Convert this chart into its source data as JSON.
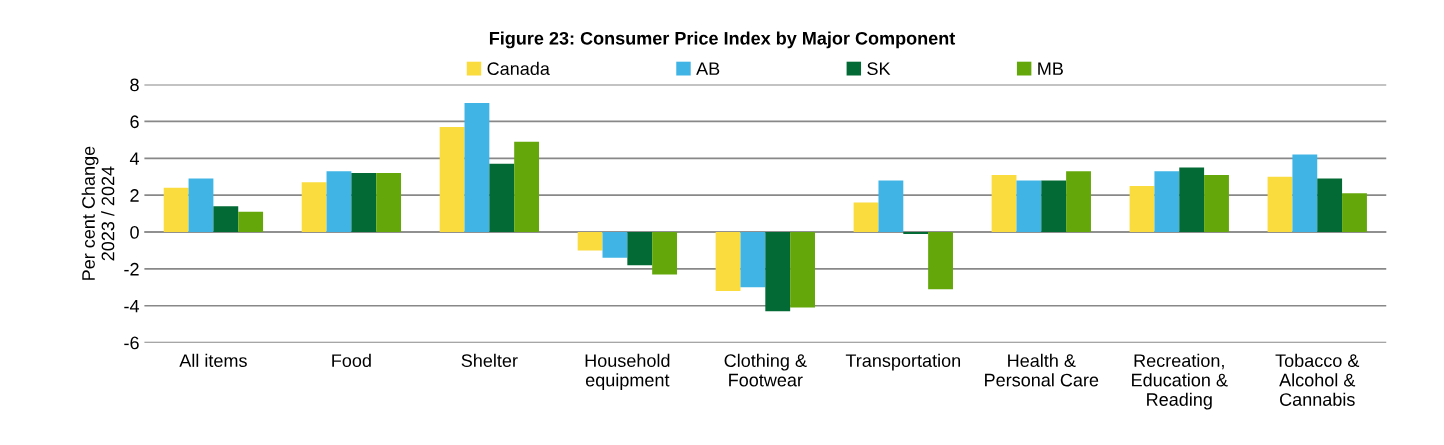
{
  "chart_data": {
    "type": "bar",
    "title": "Figure 23: Consumer Price Index by Major Component",
    "ylabel": "Per cent Change\n2023 / 2024",
    "categories": [
      "All items",
      "Food",
      "Shelter",
      "Household\nequipment",
      "Clothing &\nFootwear",
      "Transportation",
      "Health &\nPersonal Care",
      "Recreation,\nEducation &\nReading",
      "Tobacco &\nAlcohol &\nCannabis"
    ],
    "series": [
      {
        "name": "Canada",
        "color": "#fadc3f",
        "values": [
          2.4,
          2.7,
          5.7,
          -1.0,
          -3.2,
          1.6,
          3.1,
          2.5,
          3.0
        ]
      },
      {
        "name": "AB",
        "color": "#41b4e6",
        "values": [
          2.9,
          3.3,
          7.0,
          -1.4,
          -3.0,
          2.8,
          2.8,
          3.3,
          4.2
        ]
      },
      {
        "name": "SK",
        "color": "#046a35",
        "values": [
          1.4,
          3.2,
          3.7,
          -1.8,
          -4.3,
          -0.1,
          2.8,
          3.5,
          2.9
        ]
      },
      {
        "name": "MB",
        "color": "#64a70b",
        "values": [
          1.1,
          3.2,
          4.9,
          -2.3,
          -4.1,
          -3.1,
          3.3,
          3.1,
          2.1
        ]
      }
    ],
    "ylim": [
      -6,
      8
    ],
    "yticks": [
      -6,
      -4,
      -2,
      0,
      2,
      4,
      6,
      8
    ],
    "grid": "y",
    "legend": "top"
  }
}
